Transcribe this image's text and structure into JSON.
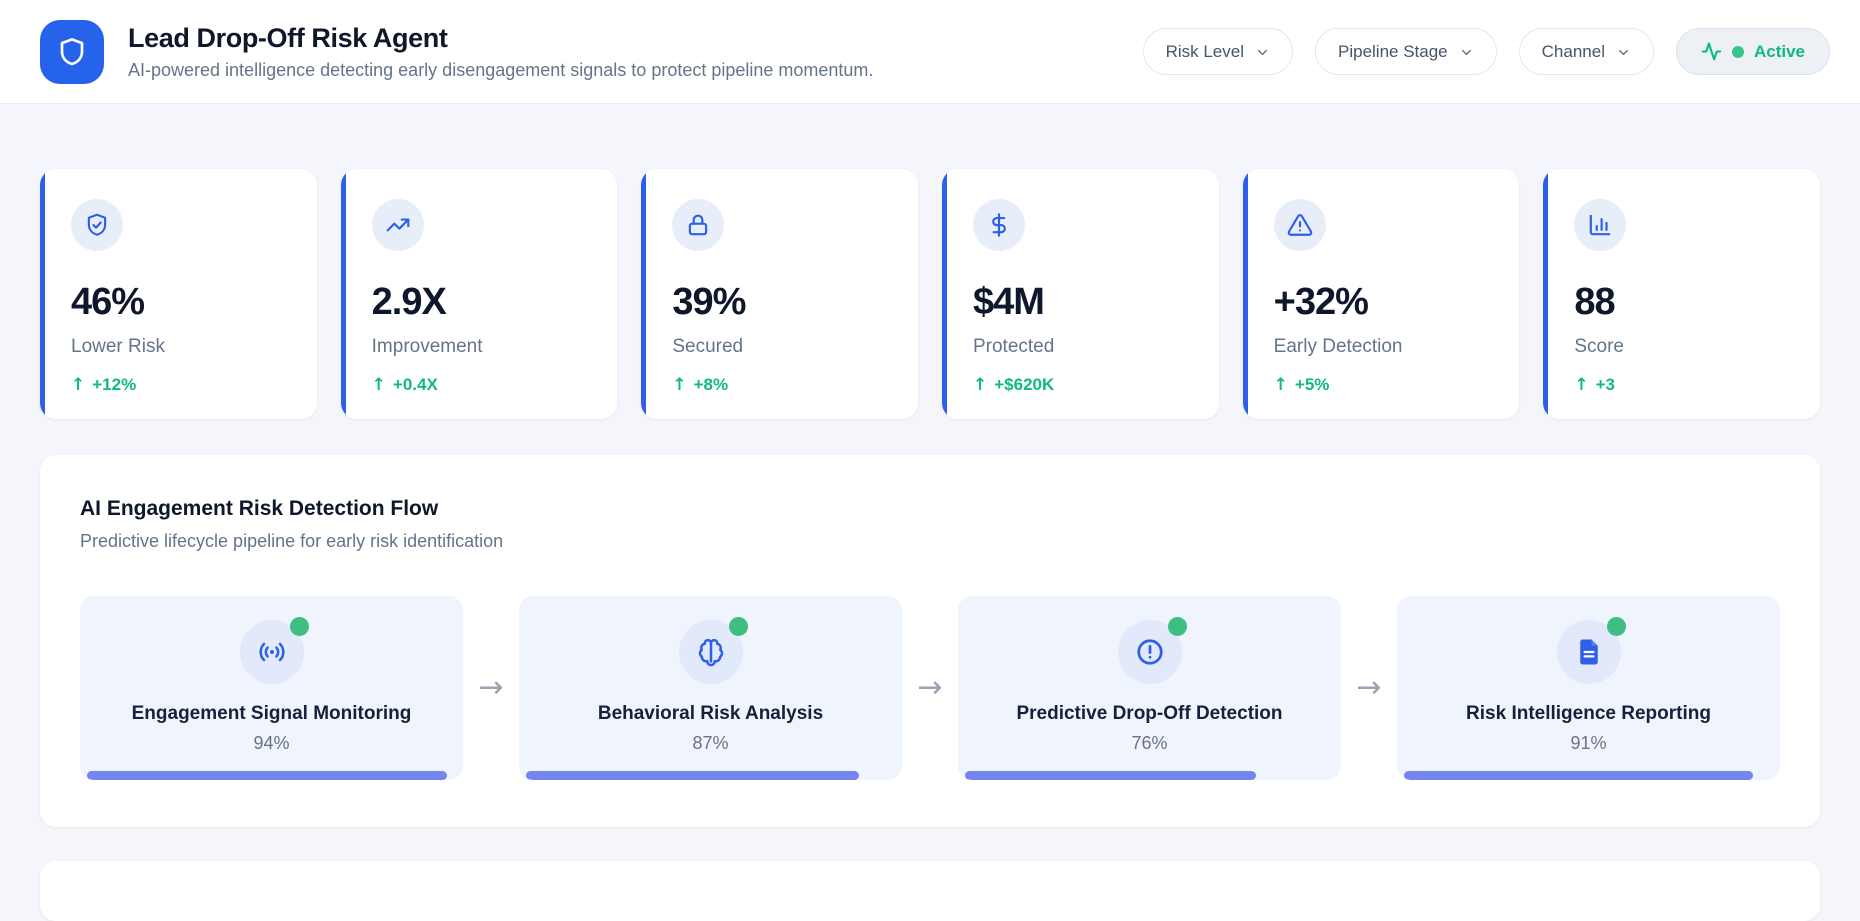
{
  "header": {
    "app_icon": "shield-icon",
    "title": "Lead Drop-Off Risk Agent",
    "subtitle": "AI-powered intelligence detecting early disengagement signals to protect pipeline momentum.",
    "filters": [
      {
        "label": "Risk Level",
        "icon": "chevron-down-icon"
      },
      {
        "label": "Pipeline Stage",
        "icon": "chevron-down-icon"
      },
      {
        "label": "Channel",
        "icon": "chevron-down-icon"
      }
    ],
    "status": {
      "label": "Active",
      "icon": "activity-pulse-icon"
    }
  },
  "stats": [
    {
      "icon": "shield-check-icon",
      "value": "46%",
      "label": "Lower Risk",
      "delta": "+12%"
    },
    {
      "icon": "trending-up-icon",
      "value": "2.9X",
      "label": "Improvement",
      "delta": "+0.4X"
    },
    {
      "icon": "lock-icon",
      "value": "39%",
      "label": "Secured",
      "delta": "+8%"
    },
    {
      "icon": "dollar-icon",
      "value": "$4M",
      "label": "Protected",
      "delta": "+$620K"
    },
    {
      "icon": "alert-triangle-icon",
      "value": "+32%",
      "label": "Early Detection",
      "delta": "+5%"
    },
    {
      "icon": "bar-chart-icon",
      "value": "88",
      "label": "Score",
      "delta": "+3"
    }
  ],
  "flow_section": {
    "title": "AI Engagement Risk Detection Flow",
    "subtitle": "Predictive lifecycle pipeline for early risk identification",
    "stages": [
      {
        "icon": "radio-signal-icon",
        "label": "Engagement Signal Monitoring",
        "percent": 94,
        "percent_text": "94%"
      },
      {
        "icon": "brain-icon",
        "label": "Behavioral Risk Analysis",
        "percent": 87,
        "percent_text": "87%"
      },
      {
        "icon": "alert-circle-icon",
        "label": "Predictive Drop-Off Detection",
        "percent": 76,
        "percent_text": "76%"
      },
      {
        "icon": "file-report-icon",
        "label": "Risk Intelligence Reporting",
        "percent": 91,
        "percent_text": "91%"
      }
    ]
  },
  "colors": {
    "brand_blue": "#2563eb",
    "accent_blue": "#2e5fe8",
    "success_green": "#10b981",
    "status_dot_green": "#34c68c",
    "stage_dot_green": "#3fbe82",
    "progress_indigo": "#7585f0",
    "page_bg": "#f4f6fb",
    "flow_card_bg": "#f0f4fd"
  }
}
